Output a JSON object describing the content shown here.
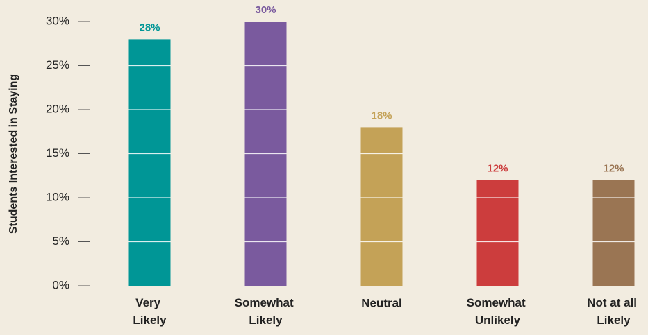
{
  "chart_data": {
    "type": "bar",
    "y_label": "Students Interested in Staying",
    "categories": [
      "Very Likely",
      "Somewhat Likely",
      "Neutral",
      "Somewhat Unlikely",
      "Not at all Likely"
    ],
    "values": [
      28,
      30,
      18,
      12,
      12
    ],
    "value_labels": [
      "28%",
      "30%",
      "18%",
      "12%",
      "12%"
    ],
    "colors": [
      "#009696",
      "#7a5a9e",
      "#c4a257",
      "#cc3d3d",
      "#9a7553"
    ],
    "ylim": [
      0,
      30
    ],
    "yticks": [
      {
        "value": 0,
        "label": "0%"
      },
      {
        "value": 5,
        "label": "5%"
      },
      {
        "value": 10,
        "label": "10%"
      },
      {
        "value": 15,
        "label": "15%"
      },
      {
        "value": 20,
        "label": "20%"
      },
      {
        "value": 25,
        "label": "25%"
      },
      {
        "value": 30,
        "label": "30%"
      }
    ],
    "grid": true
  }
}
